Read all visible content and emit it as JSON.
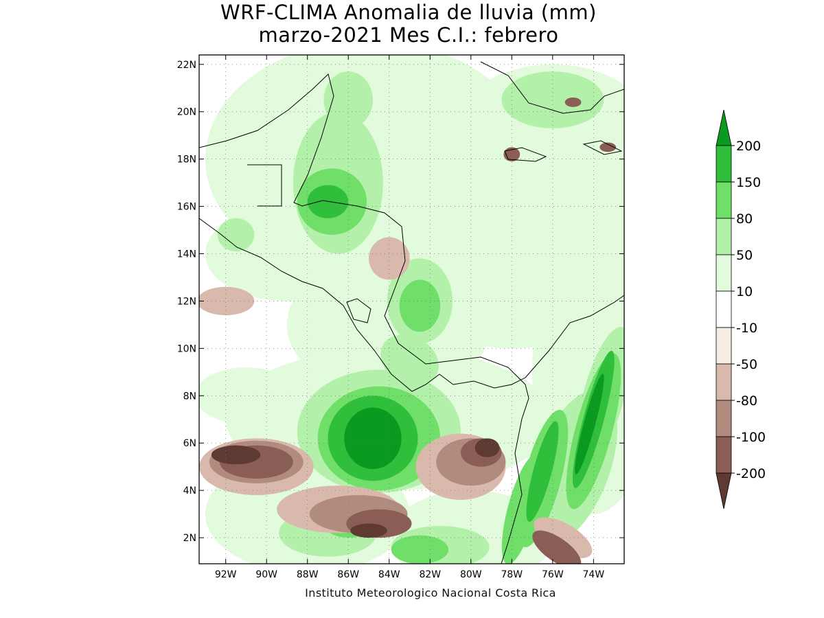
{
  "title": {
    "line1": "WRF-CLIMA Anomalia de lluvia (mm)",
    "line2": "marzo-2021 Mes C.I.: febrero"
  },
  "credit": "Instituto Meteorologico Nacional Costa Rica",
  "map": {
    "lon_range": [
      -93.3,
      -72.5
    ],
    "lat_range": [
      0.9,
      22.4
    ],
    "lon_ticks": [
      {
        "value": -92,
        "label": "92W"
      },
      {
        "value": -90,
        "label": "90W"
      },
      {
        "value": -88,
        "label": "88W"
      },
      {
        "value": -86,
        "label": "86W"
      },
      {
        "value": -84,
        "label": "84W"
      },
      {
        "value": -82,
        "label": "82W"
      },
      {
        "value": -80,
        "label": "80W"
      },
      {
        "value": -78,
        "label": "78W"
      },
      {
        "value": -76,
        "label": "76W"
      },
      {
        "value": -74,
        "label": "74W"
      }
    ],
    "lat_ticks": [
      {
        "value": 2,
        "label": "2N"
      },
      {
        "value": 4,
        "label": "4N"
      },
      {
        "value": 6,
        "label": "6N"
      },
      {
        "value": 8,
        "label": "8N"
      },
      {
        "value": 10,
        "label": "10N"
      },
      {
        "value": 12,
        "label": "12N"
      },
      {
        "value": 14,
        "label": "14N"
      },
      {
        "value": 16,
        "label": "16N"
      },
      {
        "value": 18,
        "label": "18N"
      },
      {
        "value": 20,
        "label": "20N"
      },
      {
        "value": 22,
        "label": "22N"
      }
    ],
    "gridlines": "dotted"
  },
  "colorbar": {
    "levels": [
      {
        "label": "200"
      },
      {
        "label": "150"
      },
      {
        "label": "80"
      },
      {
        "label": "50"
      },
      {
        "label": "10"
      },
      {
        "label": "-10"
      },
      {
        "label": "-50"
      },
      {
        "label": "-80"
      },
      {
        "label": "-100"
      },
      {
        "label": "-200"
      }
    ],
    "colors": [
      "#0a9a1f",
      "#2fbf3a",
      "#6fdf6a",
      "#b3f0aa",
      "#e2fbdc",
      "#ffffff",
      "#f5ece2",
      "#d9b9ab",
      "#b18b7e",
      "#8a5e55",
      "#5e3a33"
    ]
  },
  "chart_data": {
    "type": "heatmap",
    "title": "WRF-CLIMA Anomalia de lluvia (mm)",
    "subtitle": "marzo-2021 Mes C.I.: febrero",
    "xlabel": "",
    "ylabel": "",
    "x_range": [
      -93.3,
      -72.5
    ],
    "y_range": [
      0.9,
      22.4
    ],
    "color_levels": [
      -200,
      -100,
      -80,
      -50,
      -10,
      10,
      50,
      80,
      150,
      200
    ],
    "grid": true,
    "legend_placement": "right"
  }
}
